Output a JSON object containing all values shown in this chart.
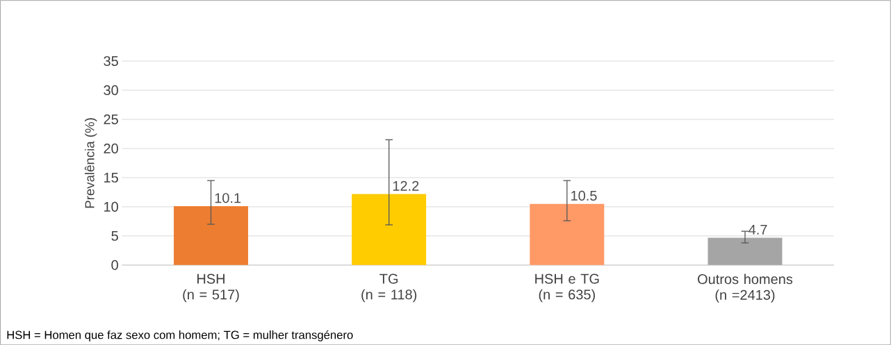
{
  "chart_data": {
    "type": "bar",
    "ylabel": "Prevalência (%)",
    "categories": [
      "HSH\n(n = 517)",
      "TG\n(n = 118)",
      "HSH e TG\n(n = 635)",
      "Outros homens\n(n =2413)"
    ],
    "values": [
      10.1,
      12.2,
      10.5,
      4.7
    ],
    "colors": [
      "#ed7d31",
      "#ffcc00",
      "#ff9966",
      "#a5a5a5"
    ],
    "errors": [
      [
        7.0,
        14.5
      ],
      [
        6.9,
        21.5
      ],
      [
        7.6,
        14.5
      ],
      [
        3.8,
        5.8
      ]
    ],
    "data_labels": true,
    "ylim": [
      0,
      35
    ],
    "yticks": [
      0,
      5,
      10,
      15,
      20,
      25,
      30,
      35
    ],
    "grid": "y",
    "annotations": [
      "HSH = Homen que faz sexo com homem; TG = mulher transgénero"
    ]
  }
}
